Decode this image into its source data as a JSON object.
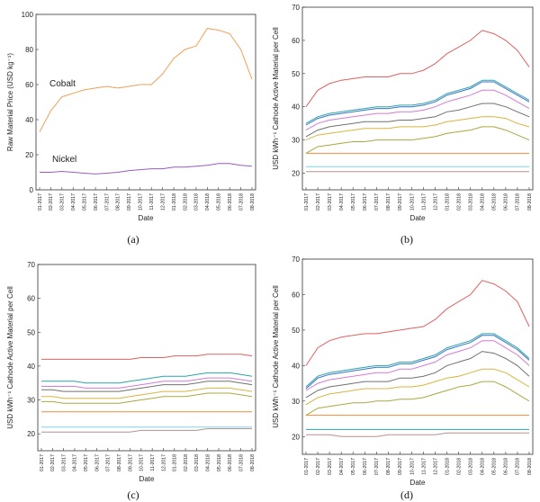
{
  "months": [
    "01-2017",
    "02-2017",
    "03-2017",
    "04-2017",
    "05-2017",
    "06-2017",
    "07-2017",
    "08-2017",
    "09-2017",
    "10-2017",
    "11-2017",
    "12-2017",
    "01-2018",
    "02-2018",
    "03-2018",
    "04-2018",
    "05-2018",
    "06-2018",
    "07-2018",
    "08-2018"
  ],
  "chart_data": [
    {
      "id": "a",
      "type": "line",
      "panel_label": "(a)",
      "xlabel": "Date",
      "ylabel": "Raw Material Price (USD kg⁻¹)",
      "ylim": [
        0,
        100
      ],
      "yticks": [
        0,
        20,
        40,
        60,
        80,
        100
      ],
      "series": [
        {
          "name": "Cobalt",
          "color": "#f0a05a",
          "values": [
            33,
            45,
            53,
            55,
            57,
            58,
            59,
            58,
            59,
            60,
            60,
            66,
            75,
            80,
            82,
            92,
            91,
            89,
            80,
            63
          ]
        },
        {
          "name": "Nickel",
          "color": "#9b59c6",
          "values": [
            10,
            10,
            10.5,
            10,
            9.5,
            9,
            9.5,
            10,
            11,
            11.5,
            12,
            12,
            13,
            13,
            13.5,
            14,
            15,
            15,
            14,
            13.5
          ]
        }
      ]
    },
    {
      "id": "b",
      "type": "line",
      "panel_label": "(b)",
      "xlabel": "Date",
      "ylabel": "USD kWh⁻¹ Cathode Active Material per Cell",
      "ylim": [
        15,
        70
      ],
      "yticks": [
        20,
        30,
        40,
        50,
        60,
        70
      ],
      "series": [
        {
          "color": "#e06060",
          "values": [
            40,
            45,
            47,
            48,
            48.5,
            49,
            49,
            49,
            50,
            50,
            51,
            53,
            56,
            58,
            60,
            63,
            62,
            60,
            57,
            52
          ]
        },
        {
          "color": "#2aa6a6",
          "values": [
            35,
            37,
            38,
            38.5,
            39,
            39.5,
            40,
            40,
            40.5,
            40.5,
            41,
            42,
            44,
            45,
            46,
            48,
            48,
            46,
            44,
            42
          ]
        },
        {
          "color": "#3b6fc6",
          "values": [
            34.5,
            36.5,
            37.5,
            38,
            38.5,
            39,
            39.5,
            39.5,
            40,
            40,
            40.5,
            41.5,
            43.5,
            44.5,
            45.5,
            47.5,
            47.5,
            45.5,
            43.5,
            41.5
          ]
        },
        {
          "color": "#d27bd2",
          "values": [
            33,
            35,
            36,
            36.5,
            37,
            37.5,
            38,
            38,
            38.5,
            38.5,
            39,
            40,
            41.5,
            42.5,
            43.5,
            45,
            45,
            43.5,
            41.5,
            39.5
          ]
        },
        {
          "color": "#707070",
          "values": [
            31,
            33,
            34,
            34.5,
            35,
            35.5,
            35.5,
            35.5,
            36,
            36,
            36.5,
            37,
            38.5,
            39,
            40,
            41,
            41,
            40,
            38.5,
            37
          ]
        },
        {
          "color": "#d8b440",
          "values": [
            30,
            31.5,
            32,
            32.5,
            33,
            33.5,
            33.5,
            33.5,
            34,
            34,
            34,
            34.5,
            35.5,
            36,
            36.5,
            37,
            37,
            36.5,
            35,
            34
          ]
        },
        {
          "color": "#a9a940",
          "values": [
            26,
            28,
            28.5,
            29,
            29.5,
            29.5,
            30,
            30,
            30,
            30,
            30.5,
            31,
            32,
            32.5,
            33,
            34,
            34,
            33,
            31.5,
            30
          ]
        },
        {
          "color": "#ee8a3c",
          "values": [
            26,
            26,
            26,
            26,
            26,
            26,
            26,
            26,
            26,
            26,
            26,
            26,
            26,
            26,
            26,
            26,
            26,
            26,
            26,
            26
          ]
        },
        {
          "color": "#7fd4e0",
          "values": [
            22,
            22,
            22,
            22,
            22,
            22,
            22,
            22,
            22,
            22,
            22,
            22,
            22,
            22,
            22,
            22,
            22,
            22,
            22,
            22
          ]
        },
        {
          "color": "#b89090",
          "values": [
            20.5,
            20.5,
            20.5,
            20.5,
            20.5,
            20.5,
            20.5,
            20.5,
            20.5,
            20.5,
            20.5,
            20.5,
            20.5,
            20.5,
            20.5,
            20.5,
            20.5,
            20.5,
            20.5,
            20.5
          ]
        }
      ]
    },
    {
      "id": "c",
      "type": "line",
      "panel_label": "(c)",
      "xlabel": "Date",
      "ylabel": "USD kWh⁻¹ Cathode Active Material per Cell",
      "ylim": [
        15,
        70
      ],
      "yticks": [
        20,
        30,
        40,
        50,
        60,
        70
      ],
      "series": [
        {
          "color": "#e06060",
          "values": [
            42,
            42,
            42,
            42,
            42,
            42,
            42,
            42,
            42,
            42.5,
            42.5,
            42.5,
            43,
            43,
            43,
            43.5,
            43.5,
            43.5,
            43.5,
            43
          ]
        },
        {
          "color": "#2aa6a6",
          "values": [
            35.5,
            35.5,
            35.5,
            35.5,
            35,
            35,
            35,
            35,
            35.5,
            36,
            36.5,
            37,
            37,
            37,
            37.5,
            38,
            38,
            38,
            37.5,
            37
          ]
        },
        {
          "color": "#d27bd2",
          "values": [
            34,
            34,
            34,
            34,
            33.5,
            33.5,
            33.5,
            33.5,
            34,
            34.5,
            35,
            35.5,
            35.5,
            35.5,
            36,
            36.5,
            36.5,
            36.5,
            36,
            35.5
          ]
        },
        {
          "color": "#707070",
          "values": [
            33,
            33,
            32.5,
            32.5,
            32.5,
            32.5,
            32.5,
            32.5,
            33,
            33.5,
            34,
            34.5,
            34.5,
            34.5,
            35,
            35.5,
            35.5,
            35.5,
            35,
            34.5
          ]
        },
        {
          "color": "#d8b440",
          "values": [
            31,
            31,
            30.5,
            30.5,
            30.5,
            30.5,
            30.5,
            30.5,
            31,
            31.5,
            32,
            32.5,
            32.5,
            32.5,
            33,
            33.5,
            33.5,
            33.5,
            33,
            32.5
          ]
        },
        {
          "color": "#a9a940",
          "values": [
            29.5,
            29.5,
            29,
            29,
            29,
            29,
            29,
            29,
            29.5,
            30,
            30.5,
            31,
            31,
            31,
            31.5,
            32,
            32,
            32,
            31.5,
            31
          ]
        },
        {
          "color": "#ee8a3c",
          "values": [
            26.5,
            26.5,
            26.5,
            26.5,
            26.5,
            26.5,
            26.5,
            26.5,
            26.5,
            26.5,
            26.5,
            26.5,
            26.5,
            26.5,
            26.5,
            26.5,
            26.5,
            26.5,
            26.5,
            26.5
          ]
        },
        {
          "color": "#7fd4e0",
          "values": [
            22,
            22,
            22,
            22,
            22,
            22,
            22,
            22,
            22,
            22,
            22,
            22,
            22,
            22,
            22,
            22,
            22,
            22,
            22,
            22
          ]
        },
        {
          "color": "#b89090",
          "values": [
            20.5,
            20.5,
            20.5,
            20.5,
            20.5,
            20.5,
            20.5,
            20.5,
            20.5,
            21,
            21,
            21,
            21,
            21,
            21,
            21.5,
            21.5,
            21.5,
            21.5,
            21.5
          ]
        }
      ]
    },
    {
      "id": "d",
      "type": "line",
      "panel_label": "(d)",
      "xlabel": "Date",
      "ylabel": "USD kWh⁻¹ Cathode Active Material per Cell",
      "ylim": [
        15,
        70
      ],
      "yticks": [
        20,
        30,
        40,
        50,
        60,
        70
      ],
      "series": [
        {
          "color": "#e06060",
          "values": [
            40,
            45,
            47,
            48,
            48.5,
            49,
            49,
            49.5,
            50,
            50.5,
            51,
            53,
            56,
            58,
            60,
            64,
            63,
            61,
            58,
            51
          ]
        },
        {
          "color": "#2aa6a6",
          "values": [
            34,
            37,
            38,
            38.5,
            39,
            39.5,
            40,
            40,
            41,
            41,
            42,
            43,
            45,
            46,
            47,
            49,
            49,
            47,
            45,
            42
          ]
        },
        {
          "color": "#3b6fc6",
          "values": [
            33.5,
            36.5,
            37.5,
            38,
            38.5,
            39,
            39.5,
            39.5,
            40.5,
            40.5,
            41.5,
            42.5,
            44.5,
            45.5,
            46.5,
            48.5,
            48.5,
            46.5,
            44.5,
            41.5
          ]
        },
        {
          "color": "#d27bd2",
          "values": [
            33,
            35,
            36,
            36.5,
            37,
            37.5,
            38,
            38,
            39,
            39,
            40,
            41,
            43,
            44,
            45,
            47,
            47,
            45,
            43,
            40
          ]
        },
        {
          "color": "#707070",
          "values": [
            31,
            33,
            34,
            34.5,
            35,
            35.5,
            35.5,
            35.5,
            36.5,
            36.5,
            37,
            38,
            40,
            41,
            42,
            44,
            43.5,
            42,
            40,
            37
          ]
        },
        {
          "color": "#d8b440",
          "values": [
            29,
            31,
            32,
            32.5,
            33,
            33.5,
            33.5,
            33.5,
            34,
            34,
            34.5,
            35.5,
            36.5,
            37,
            38,
            39,
            39,
            38,
            36,
            34
          ]
        },
        {
          "color": "#a9a940",
          "values": [
            26,
            28,
            28.5,
            29,
            29.5,
            29.5,
            30,
            30,
            30.5,
            30.5,
            31,
            32,
            33,
            34,
            34.5,
            35.5,
            35.5,
            34,
            32,
            30
          ]
        },
        {
          "color": "#ee8a3c",
          "values": [
            26,
            26,
            26,
            26,
            26,
            26,
            26,
            26,
            26,
            26,
            26,
            26,
            26,
            26,
            26,
            26,
            26,
            26,
            26,
            26
          ]
        },
        {
          "color": "#2aa6a6",
          "values": [
            22,
            22,
            22,
            22,
            22,
            22,
            22,
            22,
            22,
            22,
            22,
            22,
            22,
            22,
            22,
            22,
            22,
            22,
            22,
            22
          ]
        },
        {
          "color": "#b89090",
          "values": [
            20.5,
            20.5,
            20.5,
            20,
            20,
            20,
            20,
            20.5,
            20.5,
            20.5,
            20.5,
            20.5,
            21,
            21,
            21,
            21,
            21,
            21,
            21,
            21
          ]
        }
      ]
    }
  ]
}
